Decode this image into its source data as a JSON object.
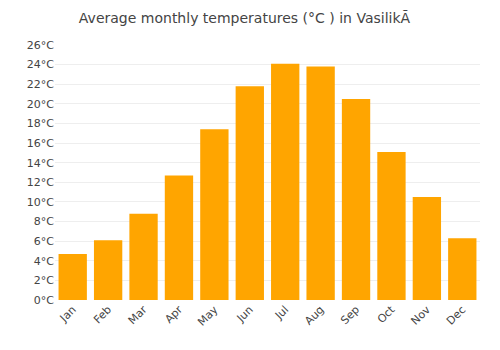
{
  "chart_data": {
    "type": "bar",
    "title": "Average monthly temperatures (°C ) in VasilikÃ",
    "categories": [
      "Jan",
      "Feb",
      "Mar",
      "Apr",
      "May",
      "Jun",
      "Jul",
      "Aug",
      "Sep",
      "Oct",
      "Nov",
      "Dec"
    ],
    "values": [
      4.7,
      6.1,
      8.8,
      12.7,
      17.4,
      21.8,
      24.1,
      23.8,
      20.5,
      15.1,
      10.5,
      6.3
    ],
    "color": "#FFA500",
    "ylim": [
      0,
      26
    ],
    "yticks": [
      {
        "value": 0,
        "label": "0°C"
      },
      {
        "value": 2,
        "label": "2°C"
      },
      {
        "value": 4,
        "label": "4°C"
      },
      {
        "value": 6,
        "label": "6°C"
      },
      {
        "value": 8,
        "label": "8°C"
      },
      {
        "value": 10,
        "label": "10°C"
      },
      {
        "value": 12,
        "label": "12°C"
      },
      {
        "value": 14,
        "label": "14°C"
      },
      {
        "value": 16,
        "label": "16°C"
      },
      {
        "value": 18,
        "label": "18°C"
      },
      {
        "value": 20,
        "label": "20°C"
      },
      {
        "value": 22,
        "label": "22°C"
      },
      {
        "value": 24,
        "label": "24°C"
      },
      {
        "value": 26,
        "label": "26°C"
      }
    ],
    "grid": true
  }
}
